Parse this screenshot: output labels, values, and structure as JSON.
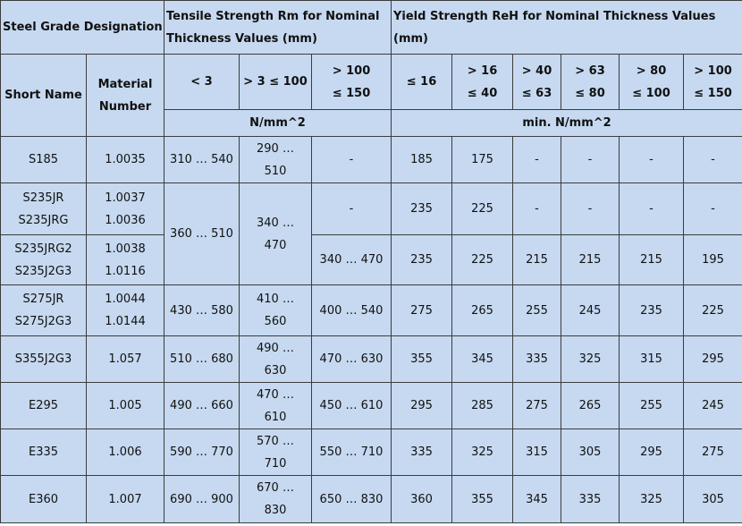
{
  "header": {
    "designation": "Steel Grade Designation",
    "tensile": [
      "Tensile Strength Rm for Nominal",
      "Thickness Values (mm)"
    ],
    "yield": [
      "Yield Strength ReH for Nominal Thickness Values",
      "(mm)"
    ],
    "short_name": "Short Name",
    "material_number": [
      "Material",
      "Number"
    ],
    "tensile_ranges": [
      [
        "< 3"
      ],
      [
        "> 3 ≤ 100"
      ],
      [
        "> 100",
        "≤ 150"
      ]
    ],
    "yield_ranges": [
      [
        "≤ 16"
      ],
      [
        "> 16",
        "≤ 40"
      ],
      [
        "> 40",
        "≤ 63"
      ],
      [
        "> 63",
        "≤ 80"
      ],
      [
        "> 80",
        "≤ 100"
      ],
      [
        "> 100",
        "≤ 150"
      ]
    ],
    "tensile_unit": "N/mm^2",
    "yield_unit": "min. N/mm^2"
  },
  "rows": [
    {
      "short_name": [
        "S185"
      ],
      "material": [
        "1.0035"
      ],
      "tensile": {
        "lt3": "310 … 540",
        "mid": [
          "290 …",
          "510"
        ],
        "high": "-"
      },
      "yield": [
        "185",
        "175",
        "-",
        "-",
        "-",
        "-"
      ]
    },
    {
      "short_name": [
        "S235JR",
        "S235JRG"
      ],
      "material": [
        "1.0037",
        "1.0036"
      ],
      "tensile": {
        "lt3": "360 … 510",
        "mid": [
          "340 …",
          "470"
        ],
        "high": "-"
      },
      "yield": [
        "235",
        "225",
        "-",
        "-",
        "-",
        "-"
      ]
    },
    {
      "short_name": [
        "S235JRG2",
        "S235J2G3"
      ],
      "material": [
        "1.0038",
        "1.0116"
      ],
      "tensile": {
        "high": "340 … 470"
      },
      "yield": [
        "235",
        "225",
        "215",
        "215",
        "215",
        "195"
      ]
    },
    {
      "short_name": [
        "S275JR",
        "S275J2G3"
      ],
      "material": [
        "1.0044",
        "1.0144"
      ],
      "tensile": {
        "lt3": "430 … 580",
        "mid": [
          "410 …",
          "560"
        ],
        "high": "400 … 540"
      },
      "yield": [
        "275",
        "265",
        "255",
        "245",
        "235",
        "225"
      ]
    },
    {
      "short_name": [
        "S355J2G3"
      ],
      "material": [
        "1.057"
      ],
      "tensile": {
        "lt3": "510 … 680",
        "mid": [
          "490 …",
          "630"
        ],
        "high": "470 … 630"
      },
      "yield": [
        "355",
        "345",
        "335",
        "325",
        "315",
        "295"
      ]
    },
    {
      "short_name": [
        "E295"
      ],
      "material": [
        "1.005"
      ],
      "tensile": {
        "lt3": "490 … 660",
        "mid": [
          "470 …",
          "610"
        ],
        "high": "450 … 610"
      },
      "yield": [
        "295",
        "285",
        "275",
        "265",
        "255",
        "245"
      ]
    },
    {
      "short_name": [
        "E335"
      ],
      "material": [
        "1.006"
      ],
      "tensile": {
        "lt3": "590 … 770",
        "mid": [
          "570 …",
          "710"
        ],
        "high": "550 … 710"
      },
      "yield": [
        "335",
        "325",
        "315",
        "305",
        "295",
        "275"
      ]
    },
    {
      "short_name": [
        "E360"
      ],
      "material": [
        "1.007"
      ],
      "tensile": {
        "lt3": "690 … 900",
        "mid": [
          "670 …",
          "830"
        ],
        "high": "650 … 830"
      },
      "yield": [
        "360",
        "355",
        "345",
        "335",
        "325",
        "305"
      ]
    }
  ]
}
